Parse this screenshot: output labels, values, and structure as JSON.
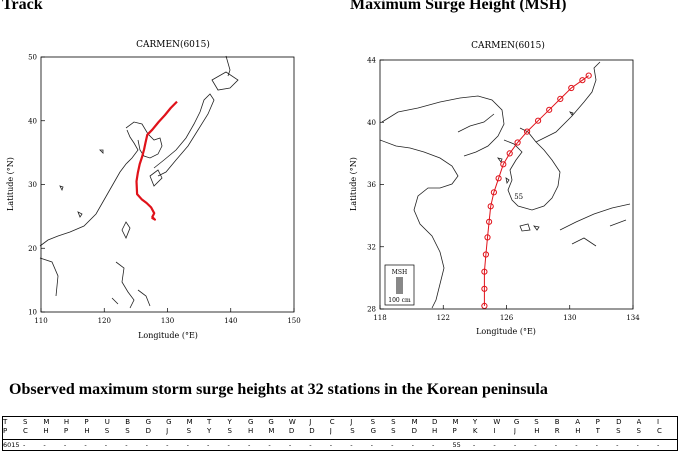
{
  "headings": {
    "track": "Track",
    "msh": "Maximum Surge Height (MSH)",
    "observed": "Observed maximum storm surge heights at 32 stations in the Korean peninsula"
  },
  "chart_data": [
    {
      "type": "line",
      "title": "CARMEN(6015)",
      "xlabel": "Longitude (°E)",
      "ylabel": "Latitude (°N)",
      "xlim": [
        110,
        150
      ],
      "ylim": [
        10,
        50
      ],
      "x_ticks": [
        "110",
        "120",
        "130",
        "140",
        "150"
      ],
      "y_ticks": [
        "10",
        "20",
        "30",
        "40",
        "50"
      ],
      "grid": false,
      "series_color": "#e0121a",
      "track": {
        "lon": [
          131.5,
          130.5,
          129.6,
          128.6,
          127.6,
          126.8,
          126.5,
          126.3,
          126.0,
          125.6,
          125.3,
          125.1,
          125.2,
          125.9,
          126.7,
          127.4,
          127.9,
          127.6,
          128.0,
          127.5
        ],
        "lat": [
          43.0,
          42.0,
          40.9,
          39.8,
          38.6,
          37.8,
          36.5,
          35.5,
          34.4,
          33.2,
          31.8,
          30.5,
          28.5,
          27.7,
          27.1,
          26.4,
          25.5,
          24.9,
          24.5,
          24.8
        ]
      }
    },
    {
      "type": "scatter",
      "title": "CARMEN(6015)",
      "xlabel": "Longitude (°E)",
      "ylabel": "Latitude (°N)",
      "xlim": [
        118,
        134
      ],
      "ylim": [
        28,
        44
      ],
      "x_ticks": [
        "118",
        "122",
        "126",
        "130",
        "134"
      ],
      "y_ticks": [
        "28",
        "32",
        "36",
        "40",
        "44"
      ],
      "grid": false,
      "series_color": "#e0121a",
      "track": {
        "lon": [
          124.6,
          124.6,
          124.6,
          124.7,
          124.8,
          124.9,
          125.0,
          125.2,
          125.5,
          125.8,
          126.2,
          126.7,
          127.3,
          128.0,
          128.7,
          129.4,
          130.1,
          130.8,
          131.2
        ],
        "lat": [
          28.2,
          29.3,
          30.4,
          31.5,
          32.6,
          33.6,
          34.6,
          35.5,
          36.4,
          37.3,
          38.0,
          38.7,
          39.4,
          40.1,
          40.8,
          41.5,
          42.2,
          42.7,
          43.0
        ]
      },
      "station_label": {
        "text": "55",
        "lon": 126.3,
        "lat": 35.2
      },
      "legend": {
        "title": "MSH",
        "scale_label": "100 cm",
        "position": "bottom-left"
      }
    },
    {
      "type": "table",
      "columns": [
        "TP",
        "SC",
        "MH",
        "HP",
        "PH",
        "US",
        "BS",
        "GD",
        "GJ",
        "MS",
        "TY",
        "YS",
        "GH",
        "GM",
        "WD",
        "JD",
        "CJ",
        "JS",
        "SG",
        "SS",
        "MD",
        "DH",
        "MP",
        "YK",
        "WI",
        "GJ",
        "SH",
        "BR",
        "AH",
        "PT",
        "DS",
        "AS",
        "IC"
      ],
      "rows": [
        {
          "values": [
            "6015",
            "-",
            "-",
            "-",
            "-",
            "-",
            "-",
            "-",
            "-",
            "-",
            "-",
            "-",
            "-",
            "-",
            "-",
            "-",
            "-",
            "-",
            "-",
            "-",
            "-",
            "-",
            "55",
            "-",
            "-",
            "-",
            "-",
            "-",
            "-",
            "-",
            "-",
            "-",
            "-"
          ]
        }
      ]
    }
  ]
}
